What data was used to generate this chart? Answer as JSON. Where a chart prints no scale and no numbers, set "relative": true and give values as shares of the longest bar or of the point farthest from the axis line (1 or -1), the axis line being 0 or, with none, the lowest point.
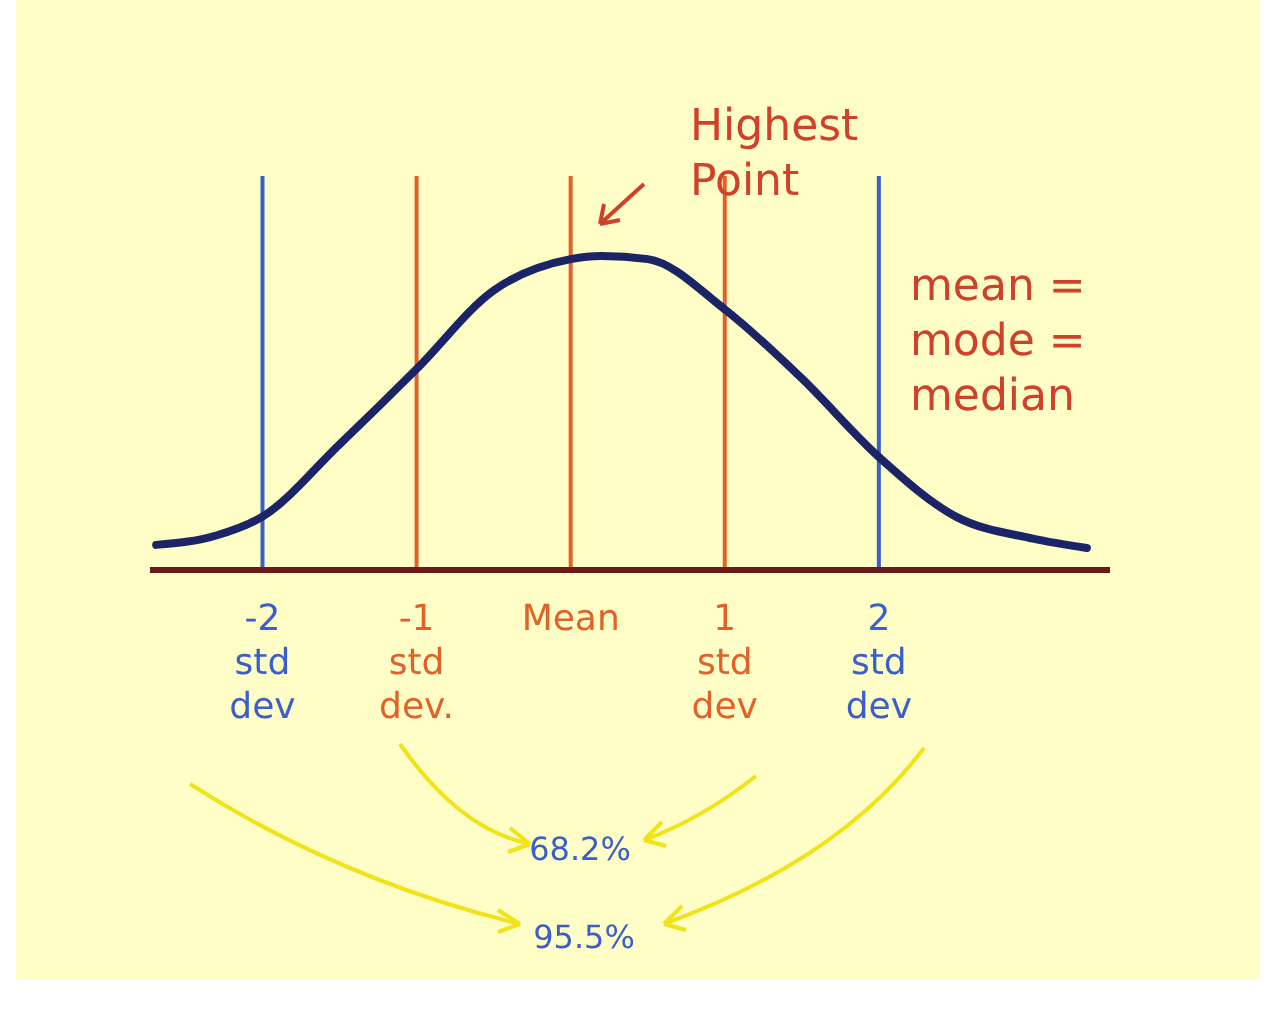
{
  "chart_data": {
    "type": "line",
    "relative": true,
    "series": [
      {
        "color": "#1b2466",
        "x": [
          -2.69,
          -2.3,
          -2,
          -1.5,
          -1,
          -0.5,
          0,
          0.2,
          0.5,
          1,
          1.5,
          2,
          2.5,
          3,
          3.35
        ],
        "values": [
          0.08,
          0.11,
          0.17,
          0.4,
          0.64,
          0.89,
          0.99,
          1,
          0.99,
          0.83,
          0.61,
          0.36,
          0.17,
          0.1,
          0.07
        ]
      }
    ],
    "xlim": [
      -2.73,
      3.5
    ],
    "xticks": [
      {
        "value": -2,
        "label": "-2 std dev"
      },
      {
        "value": -1,
        "label": "-1 std dev."
      },
      {
        "value": 0,
        "label": "Mean"
      },
      {
        "value": 1,
        "label": "1 std dev"
      },
      {
        "value": 2,
        "label": "2 std dev"
      }
    ],
    "ref_lines": [
      {
        "axis": "x",
        "value": -2,
        "color": "#3a5fc8"
      },
      {
        "axis": "x",
        "value": -1,
        "color": "#e0622a"
      },
      {
        "axis": "x",
        "value": 0,
        "color": "#e0622a"
      },
      {
        "axis": "x",
        "value": 1,
        "color": "#e0622a"
      },
      {
        "axis": "x",
        "value": 2,
        "color": "#3a5fc8"
      }
    ],
    "annotations": [
      "Highest Point",
      "mean = mode = median",
      "68.2%",
      "95.5%"
    ],
    "marker": "none",
    "line_style": "solid"
  }
}
